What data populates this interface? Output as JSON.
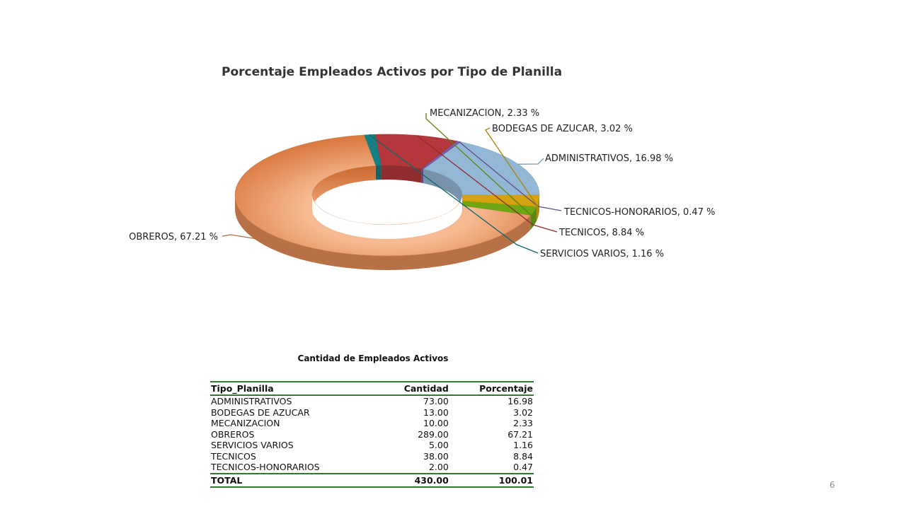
{
  "chart_data": {
    "type": "pie",
    "variant": "donut-3d",
    "title": "Porcentaje Empleados Activos por Tipo de Planilla",
    "slices": [
      {
        "label": "ADMINISTRATIVOS",
        "value": 16.98,
        "text": "ADMINISTRATIVOS, 16.98 %",
        "color": "#93b8d6"
      },
      {
        "label": "TECNICOS-HONORARIOS",
        "value": 0.47,
        "text": "TECNICOS-HONORARIOS, 0.47 %",
        "color": "#7a5ca8"
      },
      {
        "label": "TECNICOS",
        "value": 8.84,
        "text": "TECNICOS, 8.84 %",
        "color": "#b3373b"
      },
      {
        "label": "SERVICIOS VARIOS",
        "value": 1.16,
        "text": "SERVICIOS VARIOS, 1.16 %",
        "color": "#157f84"
      },
      {
        "label": "OBREROS",
        "value": 67.21,
        "text": "OBREROS, 67.21 %",
        "color": "#e08a55"
      },
      {
        "label": "MECANIZACION",
        "value": 2.33,
        "text": "MECANIZACION, 2.33 %",
        "color": "#6fa614"
      },
      {
        "label": "BODEGAS DE AZUCAR",
        "value": 3.02,
        "text": "BODEGAS DE AZUCAR, 3.02 %",
        "color": "#d4a30e"
      }
    ]
  },
  "table": {
    "title": "Cantidad de Empleados Activos",
    "headers": [
      "Tipo_Planilla",
      "Cantidad",
      "Porcentaje"
    ],
    "rows": [
      [
        "ADMINISTRATIVOS",
        "73.00",
        "16.98"
      ],
      [
        "BODEGAS DE AZUCAR",
        "13.00",
        "3.02"
      ],
      [
        "MECANIZACION",
        "10.00",
        "2.33"
      ],
      [
        "OBREROS",
        "289.00",
        "67.21"
      ],
      [
        "SERVICIOS VARIOS",
        "5.00",
        "1.16"
      ],
      [
        "TECNICOS",
        "38.00",
        "8.84"
      ],
      [
        "TECNICOS-HONORARIOS",
        "2.00",
        "0.47"
      ]
    ],
    "total": [
      "TOTAL",
      "430.00",
      "100.01"
    ]
  },
  "page_number": "6"
}
